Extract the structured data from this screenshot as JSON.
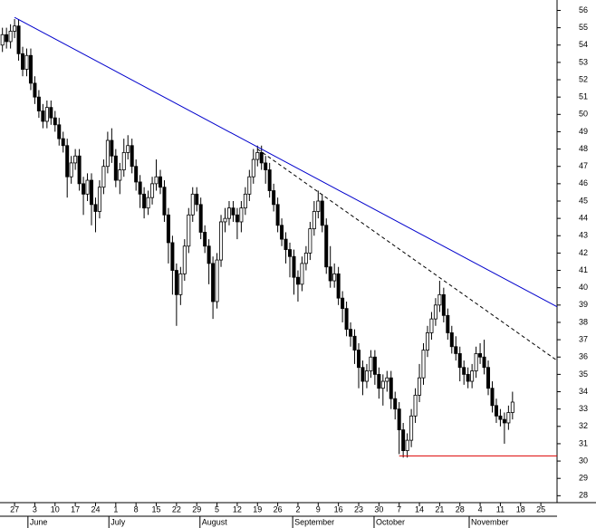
{
  "chart_data": {
    "type": "candlestick",
    "open": [
      54.0,
      54.6,
      54.2,
      54.8,
      55.1,
      53.5,
      52.6,
      53.4,
      51.8,
      51.0,
      50.2,
      49.6,
      50.4,
      49.8,
      49.4,
      48.6,
      48.2,
      46.4,
      47.2,
      47.6,
      46.0,
      45.4,
      46.2,
      44.8,
      44.4,
      45.8,
      47.0,
      48.5,
      47.6,
      46.2,
      46.8,
      47.8,
      48.2,
      47.0,
      46.1,
      45.4,
      44.6,
      45.2,
      46.0,
      46.4,
      45.8,
      44.2,
      42.6,
      41.0,
      39.6,
      40.8,
      42.4,
      44.2,
      45.4,
      44.8,
      43.2,
      42.4,
      41.4,
      39.2,
      41.6,
      43.8,
      44.0,
      44.6,
      44.2,
      43.8,
      44.6,
      45.4,
      46.4,
      47.4,
      47.8,
      47.2,
      46.8,
      45.6,
      44.8,
      43.6,
      42.8,
      42.2,
      41.8,
      40.6,
      40.2,
      41.4,
      42.0,
      43.4,
      44.4,
      45.0,
      43.6,
      41.2,
      40.4,
      40.8,
      39.4,
      38.8,
      37.6,
      37.2,
      36.4,
      35.4,
      34.6,
      35.2,
      36.0,
      35.0,
      34.2,
      34.6,
      34.8,
      33.6,
      33.0,
      31.8,
      30.6,
      31.2,
      32.6,
      33.8,
      34.8,
      36.4,
      37.4,
      38.2,
      39.0,
      39.6,
      38.4,
      37.4,
      36.6,
      36.2,
      35.4,
      35.0,
      34.6,
      35.2,
      36.2,
      36.0,
      35.4,
      34.2,
      33.2,
      32.6,
      32.4,
      32.2,
      32.8
    ],
    "high": [
      55.0,
      55.0,
      55.2,
      55.5,
      55.5,
      53.9,
      53.8,
      53.8,
      52.2,
      51.4,
      50.6,
      50.8,
      50.8,
      50.2,
      49.8,
      49.0,
      48.6,
      47.6,
      48.0,
      48.0,
      46.4,
      46.6,
      46.6,
      45.2,
      46.2,
      47.4,
      49.0,
      49.2,
      48.0,
      47.2,
      48.6,
      48.8,
      48.6,
      47.4,
      46.5,
      45.8,
      45.6,
      46.4,
      47.4,
      46.8,
      46.2,
      44.6,
      43.0,
      41.4,
      41.2,
      42.8,
      44.6,
      45.8,
      45.8,
      45.2,
      43.6,
      42.8,
      41.8,
      42.0,
      44.2,
      44.6,
      45.0,
      45.0,
      44.6,
      45.0,
      45.8,
      46.8,
      48.0,
      48.2,
      48.2,
      47.6,
      47.2,
      46.0,
      45.2,
      44.0,
      43.2,
      42.6,
      42.2,
      41.0,
      41.8,
      42.4,
      43.8,
      45.0,
      45.6,
      45.4,
      44.0,
      42.4,
      41.4,
      41.2,
      39.8,
      39.2,
      38.0,
      37.6,
      36.8,
      35.8,
      35.6,
      36.4,
      36.4,
      35.4,
      35.0,
      35.2,
      35.2,
      34.0,
      33.4,
      32.2,
      31.6,
      33.0,
      34.2,
      35.6,
      36.8,
      37.8,
      38.6,
      39.4,
      40.4,
      40.0,
      38.8,
      37.8,
      37.2,
      36.6,
      35.8,
      35.4,
      35.6,
      36.6,
      36.8,
      37.0,
      35.8,
      34.6,
      33.6,
      33.0,
      32.8,
      33.2,
      34.0
    ],
    "low": [
      53.6,
      53.8,
      53.8,
      54.4,
      53.1,
      52.2,
      52.2,
      51.4,
      50.6,
      49.8,
      49.2,
      49.2,
      49.4,
      49.0,
      48.2,
      47.8,
      45.2,
      46.0,
      46.8,
      45.6,
      44.2,
      45.0,
      43.6,
      43.2,
      44.0,
      45.4,
      46.6,
      47.2,
      45.8,
      45.4,
      46.4,
      47.4,
      46.6,
      45.6,
      44.6,
      44.0,
      44.2,
      44.8,
      45.6,
      45.4,
      43.8,
      41.4,
      39.6,
      37.8,
      39.0,
      40.4,
      42.0,
      43.8,
      44.4,
      42.8,
      42.0,
      40.2,
      38.2,
      38.8,
      41.2,
      43.2,
      43.6,
      43.8,
      42.8,
      43.2,
      44.2,
      45.0,
      46.0,
      47.0,
      46.8,
      46.0,
      45.2,
      44.4,
      43.2,
      42.4,
      41.4,
      40.6,
      39.6,
      39.2,
      39.8,
      41.0,
      41.6,
      43.0,
      44.0,
      43.2,
      40.8,
      40.0,
      40.0,
      39.0,
      38.0,
      37.2,
      36.6,
      35.6,
      34.2,
      33.8,
      34.2,
      34.8,
      34.4,
      33.6,
      33.2,
      34.0,
      33.0,
      32.4,
      30.4,
      30.2,
      30.2,
      30.8,
      32.2,
      33.4,
      34.4,
      36.0,
      37.0,
      37.8,
      38.6,
      38.0,
      37.0,
      36.2,
      35.8,
      34.6,
      34.4,
      34.2,
      34.2,
      34.8,
      35.6,
      35.0,
      33.8,
      32.8,
      32.2,
      32.0,
      31.0,
      31.8,
      32.4
    ],
    "close": [
      54.6,
      54.2,
      54.8,
      55.1,
      53.5,
      52.6,
      53.4,
      51.8,
      51.0,
      50.2,
      49.6,
      50.4,
      49.8,
      49.4,
      48.6,
      48.2,
      46.4,
      47.2,
      47.6,
      46.0,
      45.4,
      46.2,
      44.8,
      44.4,
      45.8,
      47.0,
      48.5,
      47.6,
      46.2,
      46.8,
      47.8,
      48.2,
      47.0,
      46.1,
      45.4,
      44.6,
      45.2,
      46.0,
      46.4,
      45.8,
      44.2,
      42.6,
      41.0,
      39.6,
      40.8,
      42.4,
      44.2,
      45.4,
      44.8,
      43.2,
      42.4,
      41.4,
      39.2,
      41.6,
      43.8,
      44.0,
      44.6,
      44.2,
      43.8,
      44.6,
      45.4,
      46.4,
      47.4,
      47.8,
      47.2,
      46.8,
      45.6,
      44.8,
      43.6,
      42.8,
      42.2,
      41.8,
      40.6,
      40.2,
      41.4,
      42.0,
      43.4,
      44.4,
      45.0,
      43.6,
      41.2,
      40.4,
      40.8,
      39.4,
      38.8,
      37.6,
      37.2,
      36.4,
      35.4,
      34.6,
      35.2,
      36.0,
      35.0,
      34.2,
      34.6,
      34.8,
      33.6,
      33.0,
      31.8,
      30.6,
      31.2,
      32.6,
      33.8,
      34.8,
      36.4,
      37.4,
      38.2,
      39.0,
      39.6,
      38.4,
      37.4,
      36.6,
      36.2,
      35.4,
      35.0,
      34.6,
      35.2,
      36.2,
      36.0,
      35.4,
      34.2,
      33.2,
      32.6,
      32.4,
      32.2,
      32.8,
      33.4
    ],
    "up_color": "#ffffff",
    "down_color": "#000000",
    "trendlines": [
      {
        "x": [
          3,
          137
        ],
        "y": [
          55.6,
          38.9
        ],
        "color": "#0000cc",
        "dashed": false
      },
      {
        "x": [
          63,
          137
        ],
        "y": [
          48.0,
          35.8
        ],
        "color": "#000000",
        "dashed": true
      },
      {
        "x": [
          98,
          137
        ],
        "y": [
          30.3,
          30.3
        ],
        "color": "#dd0000",
        "dashed": false
      }
    ],
    "xlim": [
      -0.6,
      137
    ],
    "ylim": [
      27.6,
      56.6
    ],
    "yticks": [
      28,
      29,
      30,
      31,
      32,
      33,
      34,
      35,
      36,
      37,
      38,
      39,
      40,
      41,
      42,
      43,
      44,
      45,
      46,
      47,
      48,
      49,
      50,
      51,
      52,
      53,
      54,
      55,
      56
    ],
    "xticks": [
      {
        "value": 3,
        "label": "27"
      },
      {
        "value": 8,
        "label": "3"
      },
      {
        "value": 13,
        "label": "10"
      },
      {
        "value": 18,
        "label": "17"
      },
      {
        "value": 23,
        "label": "24"
      },
      {
        "value": 28,
        "label": "1"
      },
      {
        "value": 33,
        "label": "8"
      },
      {
        "value": 38,
        "label": "15"
      },
      {
        "value": 43,
        "label": "22"
      },
      {
        "value": 48,
        "label": "29"
      },
      {
        "value": 53,
        "label": "5"
      },
      {
        "value": 58,
        "label": "12"
      },
      {
        "value": 63,
        "label": "19"
      },
      {
        "value": 68,
        "label": "26"
      },
      {
        "value": 73,
        "label": "2"
      },
      {
        "value": 78,
        "label": "9"
      },
      {
        "value": 83,
        "label": "16"
      },
      {
        "value": 88,
        "label": "23"
      },
      {
        "value": 93,
        "label": "30"
      },
      {
        "value": 98,
        "label": "7"
      },
      {
        "value": 103,
        "label": "14"
      },
      {
        "value": 108,
        "label": "21"
      },
      {
        "value": 113,
        "label": "28"
      },
      {
        "value": 118,
        "label": "4"
      },
      {
        "value": 123,
        "label": "11"
      },
      {
        "value": 128,
        "label": "18"
      },
      {
        "value": 133,
        "label": "25"
      }
    ],
    "month_ticks": [
      {
        "value": 6.3,
        "label": "June"
      },
      {
        "value": 26.3,
        "label": "July"
      },
      {
        "value": 48.8,
        "label": "August"
      },
      {
        "value": 71.7,
        "label": "September"
      },
      {
        "value": 91.8,
        "label": "October"
      },
      {
        "value": 115.3,
        "label": "November"
      }
    ]
  }
}
